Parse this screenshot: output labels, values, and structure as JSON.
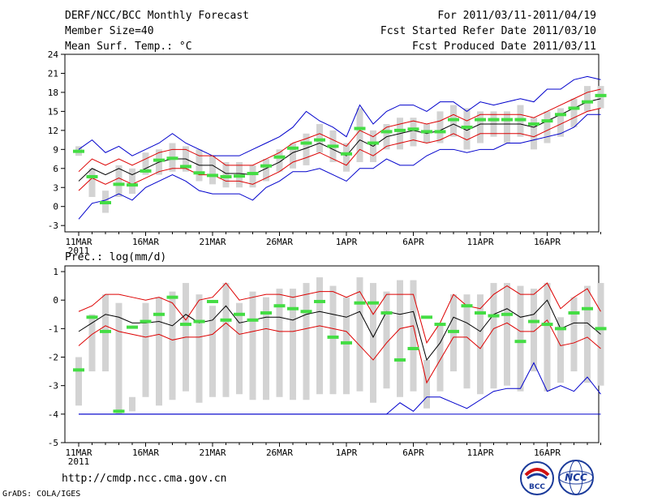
{
  "header": {
    "title": "DERF/NCC/BCC Monthly Forecast",
    "member_size": "Member Size=40",
    "variable": "Mean Surf. Temp.: °C",
    "period": "For 2011/03/11-2011/04/19",
    "started": "Fcst Started Refer Date 2011/03/10",
    "produced": "Fcst Produced Date 2011/03/11"
  },
  "footer": {
    "url": "http://cmdp.ncc.cma.gov.cn",
    "credit": "GrADS: COLA/IGES",
    "logo_left": "BCC",
    "logo_right": "NCC"
  },
  "colors": {
    "box": "#d3d3d3",
    "mean": "#000000",
    "spread": "#dd0000",
    "range": "#0000cc",
    "obs": "#44dd44"
  },
  "chart_data": [
    {
      "type": "line",
      "title": "Mean Surf. Temp.: °C",
      "x_tick_labels": [
        "11MAR",
        "16MAR",
        "21MAR",
        "26MAR",
        "1APR",
        "6APR",
        "11APR",
        "16APR"
      ],
      "x_year_label": "2011",
      "y_ticks": [
        -3,
        0,
        3,
        6,
        9,
        12,
        15,
        18,
        21,
        24
      ],
      "ylim": [
        -4,
        24
      ],
      "days": 40,
      "series": [
        {
          "name": "ensemble mean",
          "values": [
            4,
            6,
            5,
            6,
            5,
            6,
            7,
            7.5,
            7.5,
            6.5,
            6.5,
            5.2,
            5.2,
            5,
            6,
            7,
            8.5,
            9.2,
            10,
            9,
            8,
            10.5,
            9.5,
            11,
            11.5,
            12,
            11.5,
            12,
            13,
            12,
            13,
            13,
            13,
            13,
            12.5,
            13.5,
            14.5,
            15.5,
            16.5,
            17
          ]
        },
        {
          "name": "mean + spread",
          "values": [
            5.5,
            7.5,
            6.5,
            7.5,
            6.5,
            7.5,
            8.5,
            9,
            9,
            8,
            8,
            6.5,
            6.5,
            6.5,
            7.5,
            8.5,
            10,
            10.7,
            11.5,
            10.5,
            9.5,
            12,
            11,
            12.5,
            13,
            13.5,
            13,
            13.5,
            14.5,
            13.5,
            14.5,
            14.5,
            14.5,
            14.5,
            14,
            15,
            16,
            17,
            18,
            18.5
          ]
        },
        {
          "name": "mean - spread",
          "values": [
            2.5,
            4.5,
            3.5,
            4.5,
            3.5,
            4.5,
            5.5,
            6,
            6,
            5,
            5,
            4,
            4,
            3.5,
            4.5,
            5.5,
            7,
            7.7,
            8.5,
            7.5,
            6.5,
            9,
            8,
            9.5,
            10,
            10.5,
            10,
            10.5,
            11.5,
            10.5,
            11.5,
            11.5,
            11.5,
            11.5,
            11,
            12,
            13,
            14,
            15,
            15.5
          ]
        },
        {
          "name": "ensemble max",
          "values": [
            9,
            10.5,
            8.5,
            9.5,
            8,
            9,
            10,
            11.5,
            10,
            9,
            8,
            8,
            8,
            9,
            10,
            11,
            12.5,
            15,
            13.5,
            12.5,
            11,
            16,
            13,
            15,
            16,
            16,
            15,
            16.5,
            16.5,
            15,
            16.5,
            16,
            16.5,
            17,
            16.5,
            18.5,
            18.5,
            20,
            20.5,
            20
          ]
        },
        {
          "name": "ensemble min",
          "values": [
            -2,
            0.5,
            1,
            2,
            1,
            3,
            4,
            5,
            4,
            2.5,
            2,
            2,
            2,
            1,
            3,
            4,
            5.5,
            5.5,
            6,
            5,
            4,
            6,
            6,
            7.5,
            6.5,
            6.5,
            8,
            9,
            9,
            8.5,
            9,
            9,
            10,
            10,
            10.5,
            11,
            11.5,
            12.5,
            14.5,
            14.5
          ]
        },
        {
          "name": "ensemble box high",
          "values": [
            9.5,
            6,
            2.5,
            6.5,
            6,
            8.5,
            9,
            10,
            9.5,
            9,
            8,
            7,
            7,
            6.5,
            7.5,
            9,
            10,
            11.5,
            13,
            12,
            10,
            15.5,
            12,
            13,
            14,
            14,
            13,
            15,
            16,
            15.5,
            15,
            15,
            15,
            16,
            14,
            15,
            15.5,
            17,
            19,
            19
          ]
        },
        {
          "name": "ensemble box low",
          "values": [
            8,
            1.5,
            -1,
            1.5,
            2,
            5,
            5,
            5.5,
            5.5,
            4,
            3.5,
            3,
            3,
            3,
            4,
            5.5,
            6,
            6.5,
            8.5,
            7,
            5.5,
            7,
            7,
            9,
            9,
            9.5,
            10,
            10,
            11,
            9,
            10,
            11,
            10,
            11,
            9,
            10,
            11,
            12.5,
            15,
            15.5
          ]
        },
        {
          "name": "observed",
          "values": [
            8.7,
            4.7,
            0.6,
            3.5,
            3.4,
            5.6,
            7.3,
            7.6,
            6.3,
            5.3,
            4.9,
            4.7,
            4.8,
            5.2,
            6.4,
            7.8,
            9.2,
            10,
            10.5,
            9.5,
            8.3,
            12.3,
            10,
            11.8,
            12,
            12.2,
            11.8,
            11.8,
            13.7,
            12.5,
            13.7,
            13.7,
            13.7,
            13.7,
            13,
            13.5,
            14.5,
            15.5,
            16.5,
            17.5
          ]
        }
      ]
    },
    {
      "type": "line",
      "title": "Prec.: log(mm/d)",
      "x_tick_labels": [
        "11MAR",
        "16MAR",
        "21MAR",
        "26MAR",
        "1APR",
        "6APR",
        "11APR",
        "16APR"
      ],
      "x_year_label": "2011",
      "y_ticks": [
        -5,
        -4,
        -3,
        -2,
        -1,
        0,
        1
      ],
      "ylim": [
        -5,
        1.2
      ],
      "days": 40,
      "series": [
        {
          "name": "ensemble mean",
          "values": [
            -1.1,
            -0.8,
            -0.5,
            -0.6,
            -0.8,
            -0.8,
            -0.75,
            -0.9,
            -0.5,
            -0.8,
            -0.7,
            -0.2,
            -0.8,
            -0.7,
            -0.6,
            -0.6,
            -0.7,
            -0.5,
            -0.4,
            -0.5,
            -0.6,
            -0.4,
            -1.3,
            -0.4,
            -0.5,
            -0.4,
            -2.1,
            -1.5,
            -0.6,
            -0.8,
            -1.1,
            -0.5,
            -0.3,
            -0.6,
            -0.5,
            0,
            -1,
            -0.8,
            -0.8,
            -1.2
          ]
        },
        {
          "name": "mean + spread",
          "values": [
            -0.4,
            -0.2,
            0.2,
            0.2,
            0.1,
            0,
            0.1,
            -0.1,
            -0.7,
            0,
            0.1,
            0.6,
            0,
            0.1,
            0.2,
            0.2,
            0.1,
            0.2,
            0.3,
            0.3,
            0.1,
            0.3,
            -0.5,
            0.2,
            0.2,
            0.2,
            -1.5,
            -0.8,
            0.2,
            -0.2,
            -0.3,
            0.2,
            0.5,
            0.2,
            0.2,
            0.6,
            -0.3,
            0.1,
            0.4,
            -0.4
          ]
        },
        {
          "name": "mean - spread",
          "values": [
            -1.6,
            -1.2,
            -0.9,
            -1.1,
            -1.2,
            -1.3,
            -1.2,
            -1.4,
            -1.3,
            -1.3,
            -1.2,
            -0.8,
            -1.2,
            -1.1,
            -1,
            -1.1,
            -1.1,
            -1,
            -0.9,
            -1,
            -1.1,
            -1.6,
            -2.1,
            -1.5,
            -1,
            -0.9,
            -2.9,
            -2.1,
            -1.3,
            -1.3,
            -1.7,
            -1,
            -0.8,
            -1.1,
            -1.1,
            -0.7,
            -1.6,
            -1.5,
            -1.3,
            -1.7
          ]
        },
        {
          "name": "ensemble max",
          "values": [
            -4,
            -4,
            -4,
            -4,
            -4,
            -4,
            -4,
            -4,
            -4,
            -4,
            -4,
            -4,
            -4,
            -4,
            -4,
            -4,
            -4,
            -4,
            -4,
            -4,
            -4,
            -4,
            -4,
            -4,
            -3.6,
            -3.9,
            -3.4,
            -3.4,
            -3.6,
            -3.8,
            -3.5,
            -3.2,
            -3.1,
            -3.1,
            -2.2,
            -3.2,
            -3,
            -3.2,
            -2.7,
            -3.3
          ]
        },
        {
          "name": "ensemble min",
          "values": [
            -4,
            -4,
            -4,
            -4,
            -4,
            -4,
            -4,
            -4,
            -4,
            -4,
            -4,
            -4,
            -4,
            -4,
            -4,
            -4,
            -4,
            -4,
            -4,
            -4,
            -4,
            -4,
            -4,
            -4,
            -4,
            -4,
            -4,
            -4,
            -4,
            -4,
            -4,
            -4,
            -4,
            -4,
            -4,
            -4,
            -4,
            -4,
            -4,
            -4
          ]
        },
        {
          "name": "ensemble box high",
          "values": [
            -2,
            -0.5,
            0.2,
            -0.1,
            -3.4,
            -0.1,
            0.1,
            0.3,
            0.6,
            0.2,
            -0.2,
            0.6,
            -0.1,
            0.3,
            0.1,
            0.4,
            0.4,
            0.6,
            0.8,
            0.5,
            0.1,
            0.8,
            0.6,
            0.3,
            0.7,
            0.7,
            -2.1,
            -0.9,
            0.2,
            0.2,
            0.2,
            0.6,
            0.6,
            0.5,
            0.4,
            0.6,
            -0.6,
            0.1,
            0.5,
            0.6
          ]
        },
        {
          "name": "ensemble box low",
          "values": [
            -3.7,
            -2.5,
            -2.5,
            -4,
            -3.9,
            -3.4,
            -3.7,
            -3.5,
            -3.2,
            -3.6,
            -3.4,
            -3.4,
            -3.3,
            -3.5,
            -3.5,
            -3.4,
            -3.5,
            -3.5,
            -3.3,
            -3.3,
            -3.3,
            -3.2,
            -3.6,
            -3.1,
            -3.4,
            -3.2,
            -3.8,
            -3.2,
            -2.5,
            -3.1,
            -3.3,
            -3.1,
            -3,
            -3.2,
            -2.5,
            -3.2,
            -2.9,
            -2.5,
            -2.9,
            -3
          ]
        },
        {
          "name": "observed",
          "values": [
            -2.45,
            -0.6,
            -1.1,
            -3.9,
            -0.95,
            -0.75,
            -0.5,
            0.1,
            -0.85,
            -0.75,
            -0.05,
            -0.7,
            -0.5,
            -0.7,
            -0.45,
            -0.2,
            -0.3,
            -0.4,
            -0.05,
            -1.3,
            -1.5,
            -0.1,
            -0.1,
            -0.45,
            -2.1,
            -1.7,
            -0.6,
            -0.85,
            -1.1,
            -0.2,
            -0.45,
            -0.55,
            -0.5,
            -1.45,
            -0.75,
            -0.85,
            -1,
            -0.45,
            -0.3,
            -1
          ]
        }
      ]
    }
  ]
}
